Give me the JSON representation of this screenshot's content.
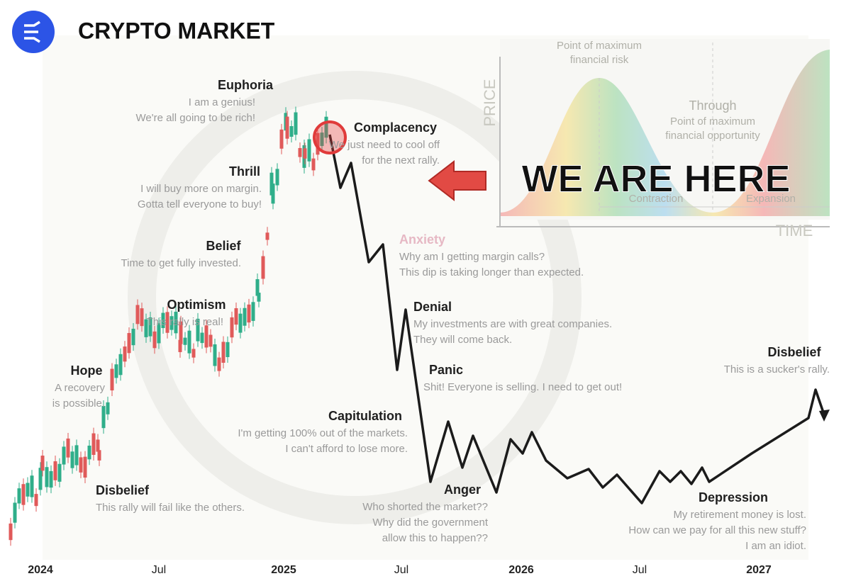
{
  "header": {
    "title": "CRYPTO MARKET"
  },
  "callout": "WE ARE HERE",
  "inset": {
    "y_label": "PRICE",
    "x_label": "TIME",
    "notes": [
      "Point of maximum",
      "financial risk",
      "Through",
      "Point of maximum",
      "financial opportunity",
      "Contraction",
      "Expansion"
    ]
  },
  "stages": [
    {
      "label": "Euphoria",
      "quote": [
        "I am a genius!",
        "We're all going to be rich!"
      ]
    },
    {
      "label": "Complacency",
      "quote": [
        "We just need to cool off",
        "for the next rally."
      ]
    },
    {
      "label": "Thrill",
      "quote": [
        "I will buy more on margin.",
        "Gotta tell everyone to buy!"
      ]
    },
    {
      "label": "Belief",
      "quote": [
        "Time to get fully invested."
      ]
    },
    {
      "label": "Optimism",
      "quote": [
        "This rally is real!"
      ]
    },
    {
      "label": "Hope",
      "quote": [
        "A recovery",
        "is possible."
      ]
    },
    {
      "label": "Disbelief",
      "quote": [
        "This rally will fail like the others."
      ]
    },
    {
      "label": "Anxiety",
      "quote": [
        "Why am I getting margin calls?",
        "This dip is taking longer than expected."
      ]
    },
    {
      "label": "Denial",
      "quote": [
        "My investments are with great companies.",
        "They will come back."
      ]
    },
    {
      "label": "Panic",
      "quote": [
        "Shit! Everyone is selling. I need to get out!"
      ]
    },
    {
      "label": "Capitulation",
      "quote": [
        "I'm getting 100% out of the markets.",
        "I can't afford to lose more."
      ]
    },
    {
      "label": "Anger",
      "quote": [
        "Who shorted the market??",
        "Why did the government",
        "allow this to happen??"
      ]
    },
    {
      "label": "Depression",
      "quote": [
        "My retirement money is lost.",
        "How can we pay for all this new stuff?",
        "I am an idiot."
      ]
    },
    {
      "label": "Disbelief",
      "quote": [
        "This is a sucker's rally."
      ]
    }
  ],
  "x_axis": [
    "2024",
    "Jul",
    "2025",
    "Jul",
    "2026",
    "Jul",
    "2027"
  ]
}
